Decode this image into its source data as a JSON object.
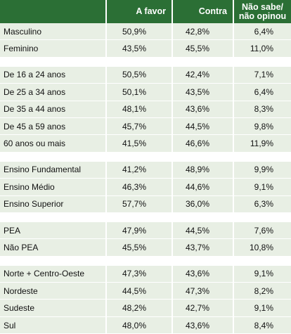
{
  "header": {
    "col0": "",
    "col1": "A favor",
    "col2": "Contra",
    "col3": "Não sabe/ não opinou"
  },
  "groups": [
    {
      "rows": [
        {
          "label": "Masculino",
          "favor": "50,9%",
          "contra": "42,8%",
          "ns": "6,4%"
        },
        {
          "label": "Feminino",
          "favor": "43,5%",
          "contra": "45,5%",
          "ns": "11,0%"
        }
      ]
    },
    {
      "rows": [
        {
          "label": "De 16 a 24 anos",
          "favor": "50,5%",
          "contra": "42,4%",
          "ns": "7,1%"
        },
        {
          "label": "De 25 a 34 anos",
          "favor": "50,1%",
          "contra": "43,5%",
          "ns": "6,4%"
        },
        {
          "label": "De 35 a 44 anos",
          "favor": "48,1%",
          "contra": "43,6%",
          "ns": "8,3%"
        },
        {
          "label": "De 45 a 59 anos",
          "favor": "45,7%",
          "contra": "44,5%",
          "ns": "9,8%"
        },
        {
          "label": "60 anos ou mais",
          "favor": "41,5%",
          "contra": "46,6%",
          "ns": "11,9%"
        }
      ]
    },
    {
      "rows": [
        {
          "label": "Ensino Fundamental",
          "favor": "41,2%",
          "contra": "48,9%",
          "ns": "9,9%"
        },
        {
          "label": "Ensino Médio",
          "favor": "46,3%",
          "contra": "44,6%",
          "ns": "9,1%"
        },
        {
          "label": "Ensino Superior",
          "favor": "57,7%",
          "contra": "36,0%",
          "ns": "6,3%"
        }
      ]
    },
    {
      "rows": [
        {
          "label": " PEA",
          "favor": "47,9%",
          "contra": "44,5%",
          "ns": "7,6%"
        },
        {
          "label": " Não PEA",
          "favor": "45,5%",
          "contra": "43,7%",
          "ns": "10,8%"
        }
      ]
    },
    {
      "rows": [
        {
          "label": "Norte + Centro-Oeste",
          "favor": "47,3%",
          "contra": "43,6%",
          "ns": "9,1%"
        },
        {
          "label": "Nordeste",
          "favor": "44,5%",
          "contra": "47,3%",
          "ns": "8,2%"
        },
        {
          "label": "Sudeste",
          "favor": "48,2%",
          "contra": "42,7%",
          "ns": "9,1%"
        },
        {
          "label": "Sul",
          "favor": "48,0%",
          "contra": "43,6%",
          "ns": "8,4%"
        }
      ]
    }
  ],
  "colors": {
    "header_bg": "#2b6f35",
    "row_bg": "#e8efe4"
  }
}
